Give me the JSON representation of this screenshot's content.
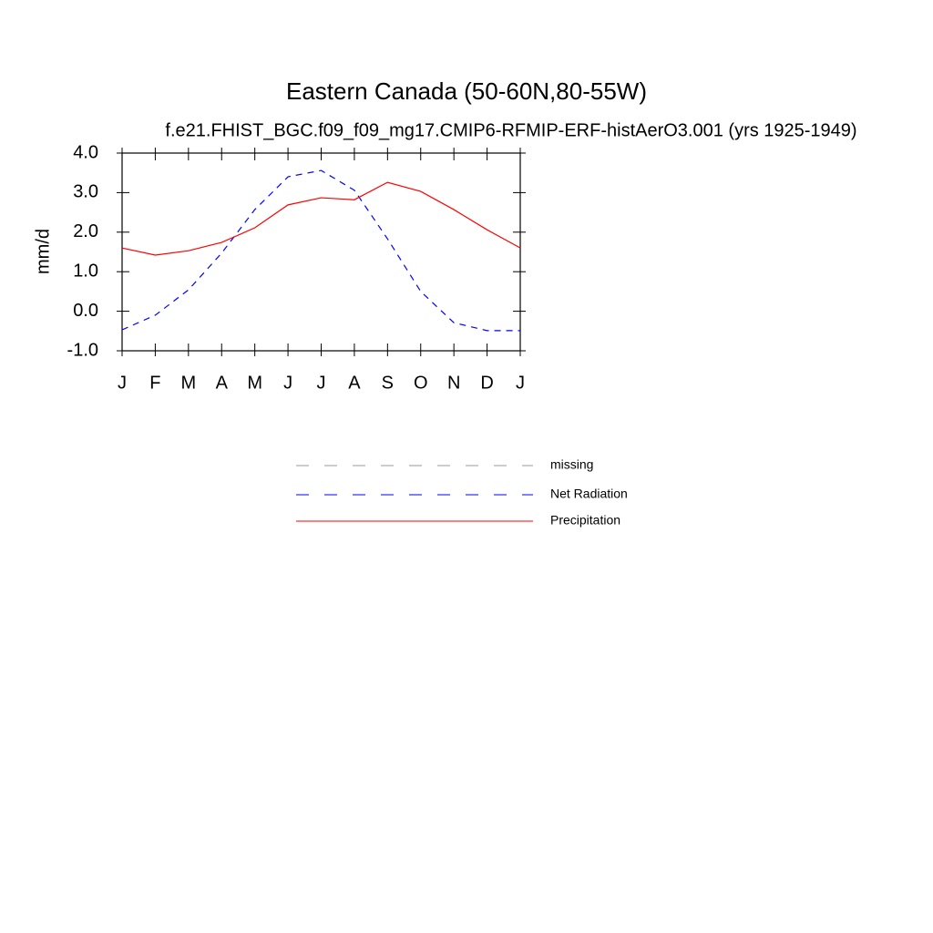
{
  "chart_data": {
    "type": "line",
    "title": "Eastern Canada (50-60N,80-55W)",
    "subtitle": "f.e21.FHIST_BGC.f09_f09_mg17.CMIP6-RFMIP-ERF-histAerO3.001 (yrs 1925-1949)",
    "y_label": "mm/d",
    "categories": [
      "J",
      "F",
      "M",
      "A",
      "M",
      "J",
      "J",
      "A",
      "S",
      "O",
      "N",
      "D",
      "J"
    ],
    "ylim": [
      -1.0,
      4.0
    ],
    "yticks": [
      {
        "value": -1.0,
        "label": "-1.0"
      },
      {
        "value": 0.0,
        "label": "0.0"
      },
      {
        "value": 1.0,
        "label": "1.0"
      },
      {
        "value": 2.0,
        "label": "2.0"
      },
      {
        "value": 3.0,
        "label": "3.0"
      },
      {
        "value": 4.0,
        "label": "4.0"
      }
    ],
    "series": [
      {
        "name": "missing",
        "color": "#999999",
        "dash": true,
        "values": [
          null,
          null,
          null,
          null,
          null,
          null,
          null,
          null,
          null,
          null,
          null,
          null,
          null
        ]
      },
      {
        "name": "Net Radiation",
        "color": "#0000ff",
        "dash": true,
        "values": [
          -0.47,
          -0.1,
          0.54,
          1.47,
          2.57,
          3.4,
          3.56,
          3.06,
          1.83,
          0.5,
          -0.29,
          -0.49,
          -0.49
        ]
      },
      {
        "name": "Precipitation",
        "color": "#ff0000",
        "dash": false,
        "values": [
          1.6,
          1.42,
          1.53,
          1.74,
          2.11,
          2.69,
          2.87,
          2.82,
          3.26,
          3.03,
          2.57,
          2.06,
          1.6
        ]
      }
    ]
  }
}
